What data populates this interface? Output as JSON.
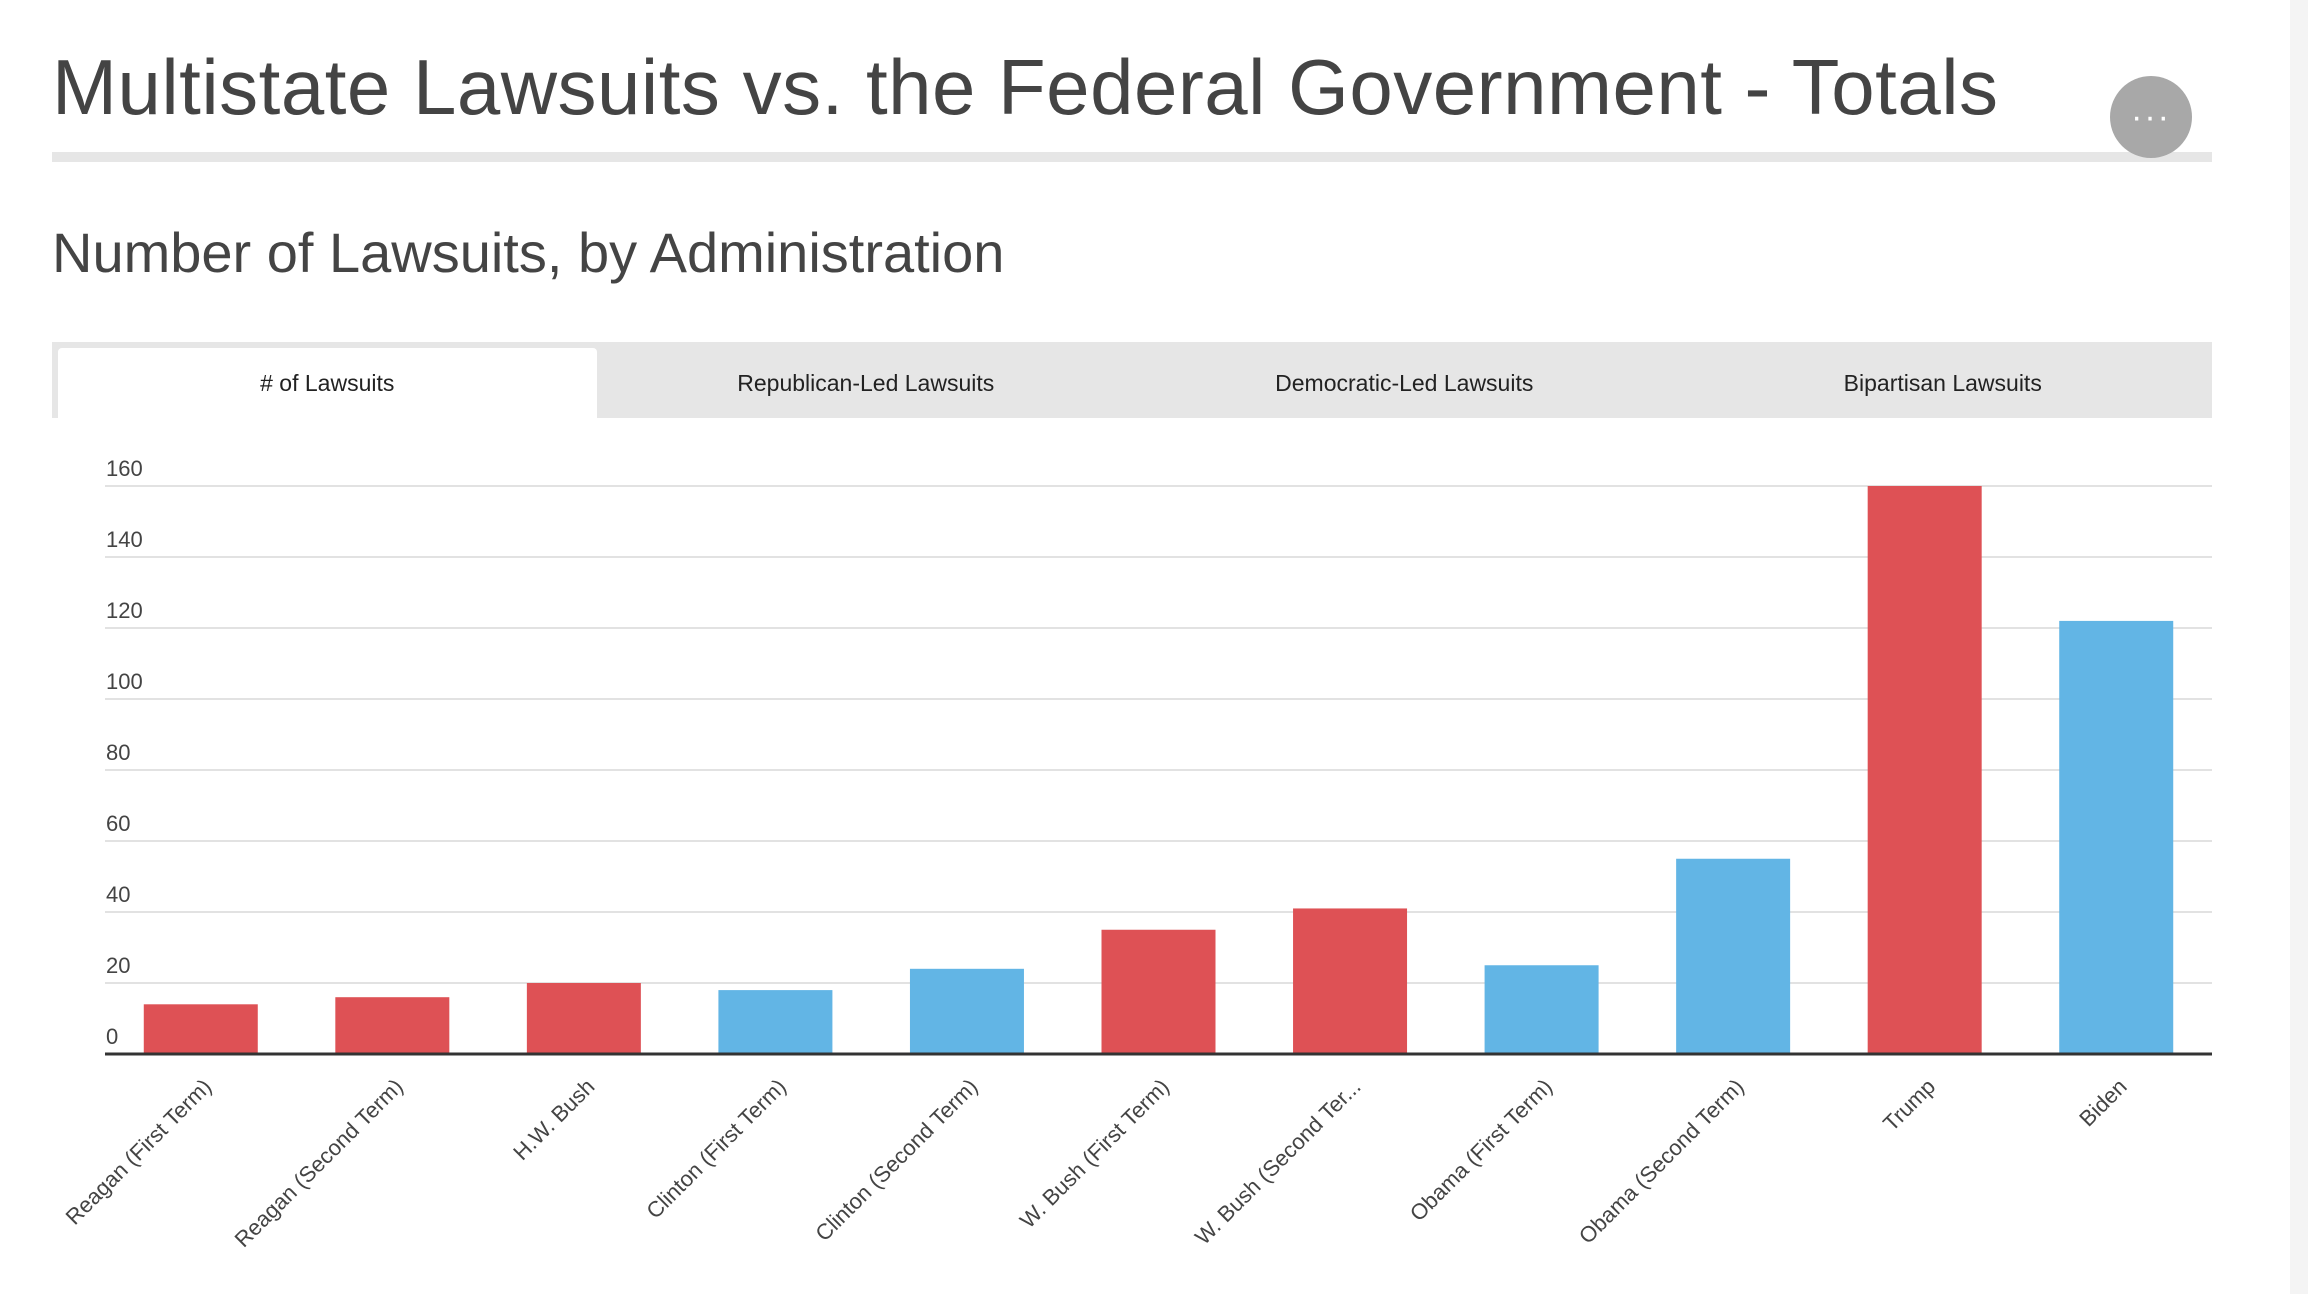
{
  "header": {
    "title": "Multistate Lawsuits vs. the Federal Government - Totals",
    "menu_label": "···",
    "menu_icon": "more-horizontal-icon"
  },
  "subtitle": "Number of Lawsuits, by Administration",
  "tabs": [
    {
      "label": "# of Lawsuits",
      "active": true
    },
    {
      "label": "Republican-Led Lawsuits",
      "active": false
    },
    {
      "label": "Democratic-Led Lawsuits",
      "active": false
    },
    {
      "label": "Bipartisan Lawsuits",
      "active": false
    }
  ],
  "colors": {
    "republican": "#de5155",
    "democratic": "#62b5e5",
    "grid": "#d9d9d9",
    "axis": "#333333"
  },
  "chart_data": {
    "type": "bar",
    "title": "",
    "xlabel": "",
    "ylabel": "",
    "ylim": [
      0,
      160
    ],
    "yticks": [
      0,
      20,
      40,
      60,
      80,
      100,
      120,
      140,
      160
    ],
    "grid": true,
    "categories": [
      "Reagan (First Term)",
      "Reagan (Second Term)",
      "H.W. Bush",
      "Clinton (First Term)",
      "Clinton (Second Term)",
      "W. Bush (First Term)",
      "W. Bush (Second Ter...",
      "Obama (First Term)",
      "Obama (Second Term)",
      "Trump",
      "Biden"
    ],
    "values": [
      14,
      16,
      20,
      18,
      24,
      35,
      41,
      25,
      55,
      160,
      122
    ],
    "bar_colors": [
      "#de5155",
      "#de5155",
      "#de5155",
      "#62b5e5",
      "#62b5e5",
      "#de5155",
      "#de5155",
      "#62b5e5",
      "#62b5e5",
      "#de5155",
      "#62b5e5"
    ]
  }
}
